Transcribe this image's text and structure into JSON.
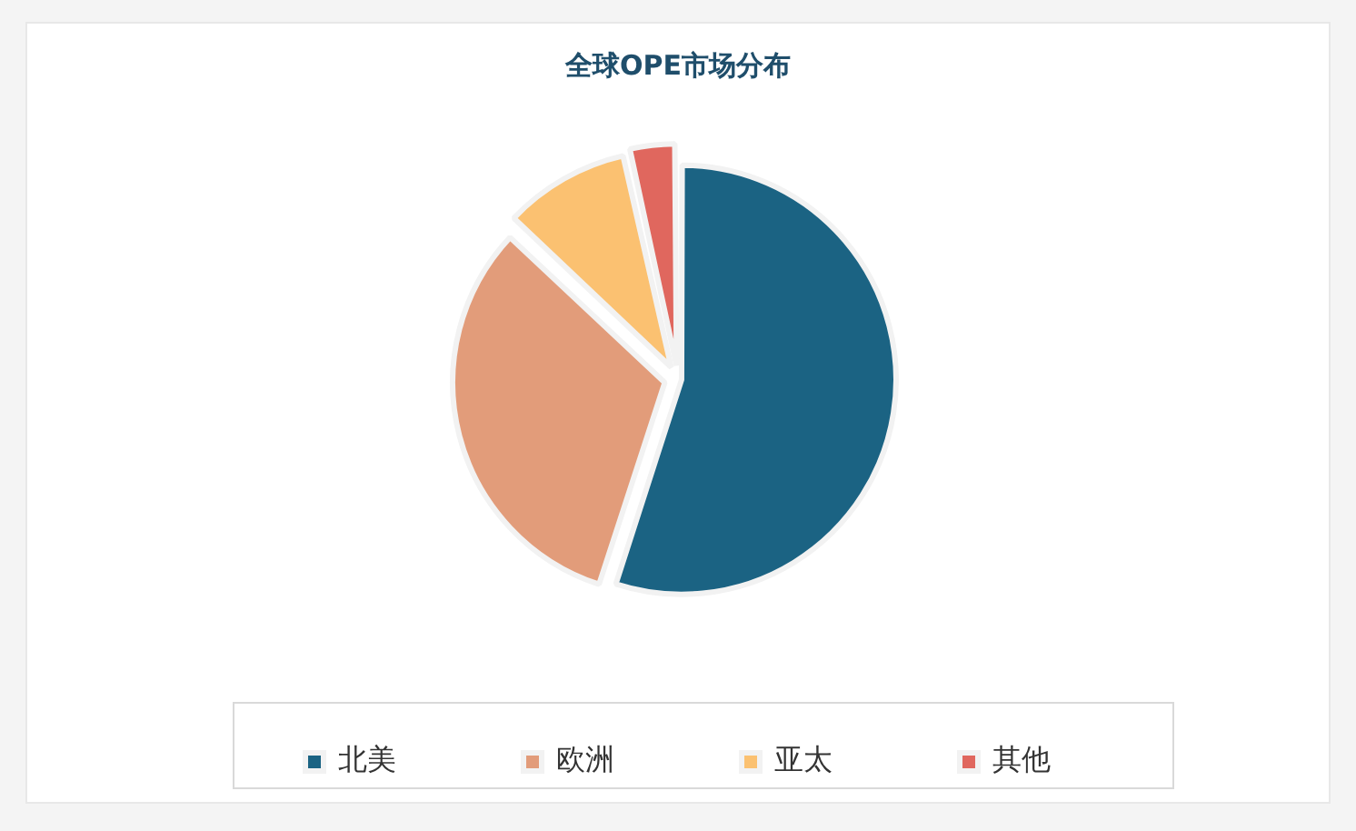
{
  "chart_data": {
    "type": "pie",
    "title": "全球OPE市场分布",
    "categories": [
      "北美",
      "欧洲",
      "亚太",
      "其他"
    ],
    "values": [
      55,
      32,
      9.5,
      3.5
    ],
    "colors": [
      "#1b6383",
      "#e29c7a",
      "#fbc171",
      "#e0675e"
    ],
    "legend": "bottom"
  }
}
